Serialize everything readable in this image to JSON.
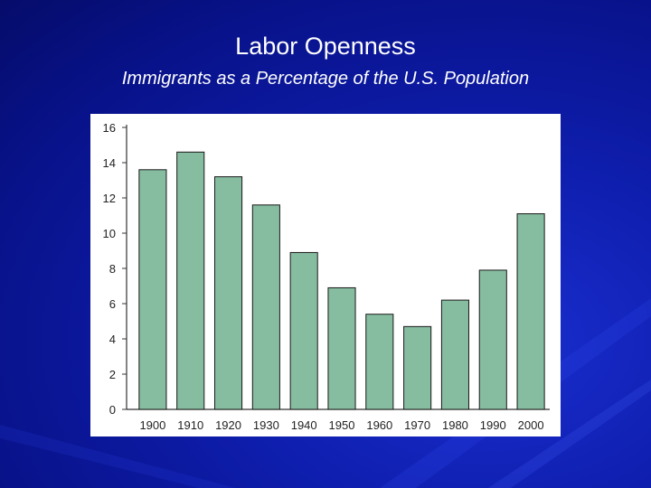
{
  "slide": {
    "title": "Labor Openness",
    "subtitle": "Immigrants as a Percentage of the U.S. Population"
  },
  "colors": {
    "background": "#0a1690",
    "bar_fill": "#86bca0",
    "bar_stroke": "#1a1a1a",
    "panel": "#ffffff"
  },
  "chart_data": {
    "type": "bar",
    "title": "",
    "xlabel": "",
    "ylabel": "",
    "categories": [
      "1900",
      "1910",
      "1920",
      "1930",
      "1940",
      "1950",
      "1960",
      "1970",
      "1980",
      "1990",
      "2000"
    ],
    "values": [
      13.6,
      14.6,
      13.2,
      11.6,
      8.9,
      6.9,
      5.4,
      4.7,
      6.2,
      7.9,
      11.1
    ],
    "ylim": [
      0,
      16
    ],
    "yticks": [
      0,
      2,
      4,
      6,
      8,
      10,
      12,
      14,
      16
    ],
    "grid": false,
    "legend": "none"
  }
}
